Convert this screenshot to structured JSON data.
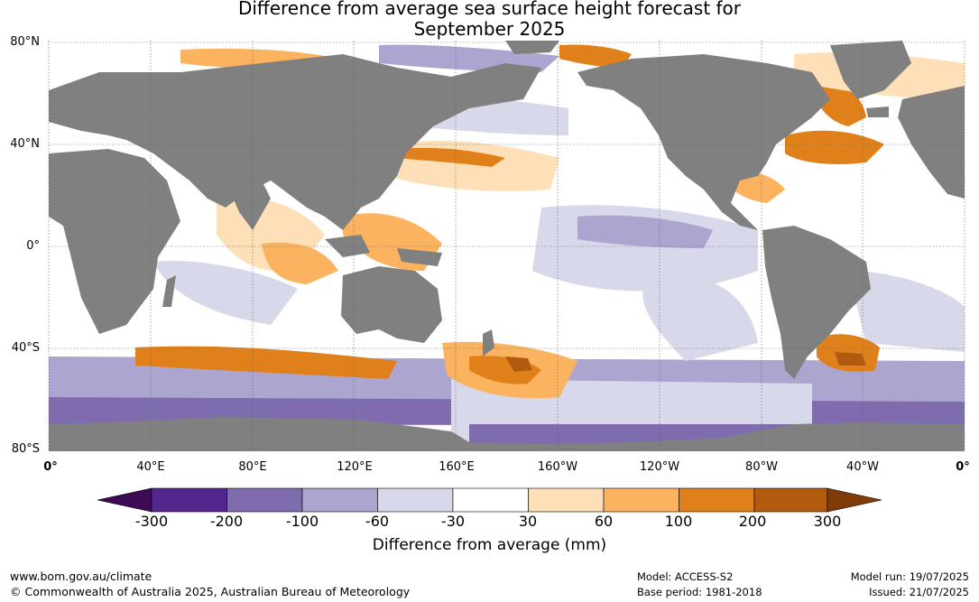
{
  "title_line1": "Difference from average sea surface height forecast for",
  "title_line2": "September 2025",
  "lat_labels": [
    "80°N",
    "40°N",
    "0°",
    "40°S",
    "80°S"
  ],
  "lon_labels": [
    "0°",
    "40°E",
    "80°E",
    "120°E",
    "160°E",
    "160°W",
    "120°W",
    "80°W",
    "40°W",
    "0°"
  ],
  "colorbar": {
    "title": "Difference from average (mm)",
    "ticks": [
      "-300",
      "-200",
      "-100",
      "-60",
      "-30",
      "30",
      "60",
      "100",
      "200",
      "300"
    ],
    "colors": [
      "#3d0a55",
      "#54278f",
      "#7e6cae",
      "#aba5d0",
      "#d8d8eb",
      "#ffffff",
      "#fde0b8",
      "#fbb35f",
      "#e0801a",
      "#b25a0e",
      "#7f3b08"
    ]
  },
  "land_color": "#808080",
  "footer": {
    "url": "www.bom.gov.au/climate",
    "copyright": "© Commonwealth of Australia 2025, Australian Bureau of Meteorology",
    "model": "Model: ACCESS-S2",
    "base_period": "Base period: 1981-2018",
    "model_run": "Model run: 19/07/2025",
    "issued": "Issued: 21/07/2025"
  }
}
